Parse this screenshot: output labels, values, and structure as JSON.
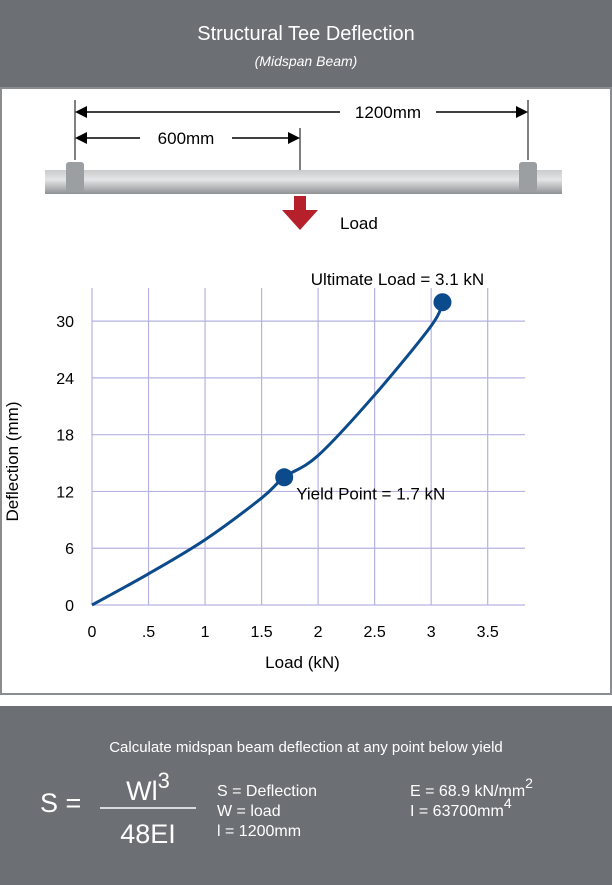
{
  "header": {
    "title": "Structural Tee Deflection",
    "subtitle": "(Midspan Beam)"
  },
  "diagram": {
    "span": "1200mm",
    "half_span": "600mm",
    "load": "Load"
  },
  "chart_data": {
    "type": "line",
    "xlabel": "Load (kN)",
    "ylabel": "Deflection (mm)",
    "xlim": [
      0,
      3.83
    ],
    "ylim": [
      0,
      33.5
    ],
    "xticks": [
      0,
      {
        "value": 0.5,
        "label": ".5"
      },
      1,
      1.5,
      2,
      2.5,
      3,
      3.5
    ],
    "yticks": [
      0,
      6,
      12,
      18,
      24,
      30
    ],
    "grid": true,
    "series": [
      {
        "name": "Deflection",
        "color": "#0b4a8b",
        "x": [
          0,
          0.5,
          1,
          1.5,
          1.7,
          2,
          2.5,
          3,
          3.1
        ],
        "values": [
          0,
          3.3,
          6.9,
          11.3,
          13.5,
          15.8,
          22.2,
          29.5,
          32
        ]
      }
    ],
    "points": [
      {
        "label": "Yield Point = 1.7 kN",
        "x": 1.7,
        "y": 13.5
      },
      {
        "label": "Ultimate Load = 3.1 kN",
        "x": 3.1,
        "y": 32
      }
    ]
  },
  "formula": {
    "intro": "Calculate midspan beam deflection at any point below yield",
    "lhs": "S =",
    "numerator": "Wl",
    "numerator_exp": "3",
    "denominator": "48EI",
    "defs": [
      "S = Deflection",
      "W = load",
      "l = 1200mm"
    ],
    "e_def": "E = 68.9 kN/mm",
    "e_exp": "2",
    "i_def": "I = 63700mm",
    "i_exp": "4"
  }
}
